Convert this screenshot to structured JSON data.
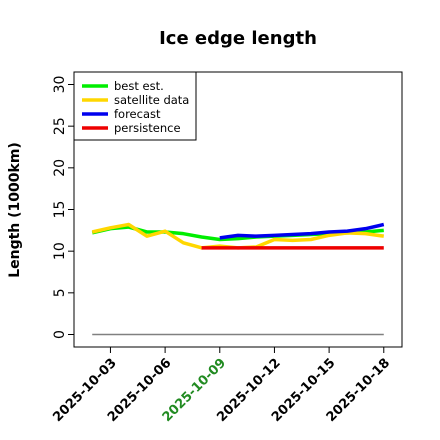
{
  "chart_data": {
    "type": "line",
    "title": "Ice edge length",
    "xlabel": "",
    "ylabel": "Length (1000km)",
    "ylim": [
      -1.5,
      31.5
    ],
    "yticks": [
      0,
      5,
      10,
      15,
      20,
      25,
      30
    ],
    "xlim": [
      "2025-10-01",
      "2025-10-19"
    ],
    "xticks": [
      {
        "label": "2025-10-03",
        "date": "2025-10-03",
        "color": "#000000"
      },
      {
        "label": "2025-10-06",
        "date": "2025-10-06",
        "color": "#000000"
      },
      {
        "label": "2025-10-09",
        "date": "2025-10-09",
        "color": "#228B22"
      },
      {
        "label": "2025-10-12",
        "date": "2025-10-12",
        "color": "#000000"
      },
      {
        "label": "2025-10-15",
        "date": "2025-10-15",
        "color": "#000000"
      },
      {
        "label": "2025-10-18",
        "date": "2025-10-18",
        "color": "#000000"
      }
    ],
    "grid": false,
    "legend": "top-left",
    "reference_line": {
      "y": 0,
      "x_start": "2025-10-02",
      "x_end": "2025-10-18",
      "color": "#808080"
    },
    "series": [
      {
        "name": "best est.",
        "color": "#00ee00",
        "points": [
          {
            "x": "2025-10-02",
            "y": 12.2
          },
          {
            "x": "2025-10-03",
            "y": 12.7
          },
          {
            "x": "2025-10-04",
            "y": 12.9
          },
          {
            "x": "2025-10-05",
            "y": 12.3
          },
          {
            "x": "2025-10-06",
            "y": 12.3
          },
          {
            "x": "2025-10-07",
            "y": 12.1
          },
          {
            "x": "2025-10-08",
            "y": 11.7
          },
          {
            "x": "2025-10-09",
            "y": 11.4
          },
          {
            "x": "2025-10-10",
            "y": 11.5
          },
          {
            "x": "2025-10-11",
            "y": 11.7
          },
          {
            "x": "2025-10-12",
            "y": 11.8
          },
          {
            "x": "2025-10-13",
            "y": 11.9
          },
          {
            "x": "2025-10-14",
            "y": 12.0
          },
          {
            "x": "2025-10-15",
            "y": 12.1
          },
          {
            "x": "2025-10-16",
            "y": 12.2
          },
          {
            "x": "2025-10-17",
            "y": 12.3
          },
          {
            "x": "2025-10-18",
            "y": 12.5
          }
        ]
      },
      {
        "name": "satellite data",
        "color": "#ffd700",
        "points": [
          {
            "x": "2025-10-02",
            "y": 12.3
          },
          {
            "x": "2025-10-03",
            "y": 12.8
          },
          {
            "x": "2025-10-04",
            "y": 13.2
          },
          {
            "x": "2025-10-05",
            "y": 11.8
          },
          {
            "x": "2025-10-06",
            "y": 12.4
          },
          {
            "x": "2025-10-07",
            "y": 11.0
          },
          {
            "x": "2025-10-08",
            "y": 10.4
          },
          {
            "x": "2025-10-09",
            "y": 10.6
          },
          {
            "x": "2025-10-10",
            "y": 10.4
          },
          {
            "x": "2025-10-11",
            "y": 10.5
          },
          {
            "x": "2025-10-12",
            "y": 11.4
          },
          {
            "x": "2025-10-13",
            "y": 11.3
          },
          {
            "x": "2025-10-14",
            "y": 11.4
          },
          {
            "x": "2025-10-15",
            "y": 11.9
          },
          {
            "x": "2025-10-16",
            "y": 12.2
          },
          {
            "x": "2025-10-17",
            "y": 12.1
          },
          {
            "x": "2025-10-18",
            "y": 11.8
          }
        ]
      },
      {
        "name": "forecast",
        "color": "#0000ee",
        "points": [
          {
            "x": "2025-10-09",
            "y": 11.6
          },
          {
            "x": "2025-10-10",
            "y": 11.9
          },
          {
            "x": "2025-10-11",
            "y": 11.8
          },
          {
            "x": "2025-10-12",
            "y": 11.9
          },
          {
            "x": "2025-10-13",
            "y": 12.0
          },
          {
            "x": "2025-10-14",
            "y": 12.1
          },
          {
            "x": "2025-10-15",
            "y": 12.3
          },
          {
            "x": "2025-10-16",
            "y": 12.4
          },
          {
            "x": "2025-10-17",
            "y": 12.7
          },
          {
            "x": "2025-10-18",
            "y": 13.2
          }
        ]
      },
      {
        "name": "persistence",
        "color": "#ee0000",
        "points": [
          {
            "x": "2025-10-08",
            "y": 10.4
          },
          {
            "x": "2025-10-18",
            "y": 10.4
          }
        ]
      }
    ]
  }
}
